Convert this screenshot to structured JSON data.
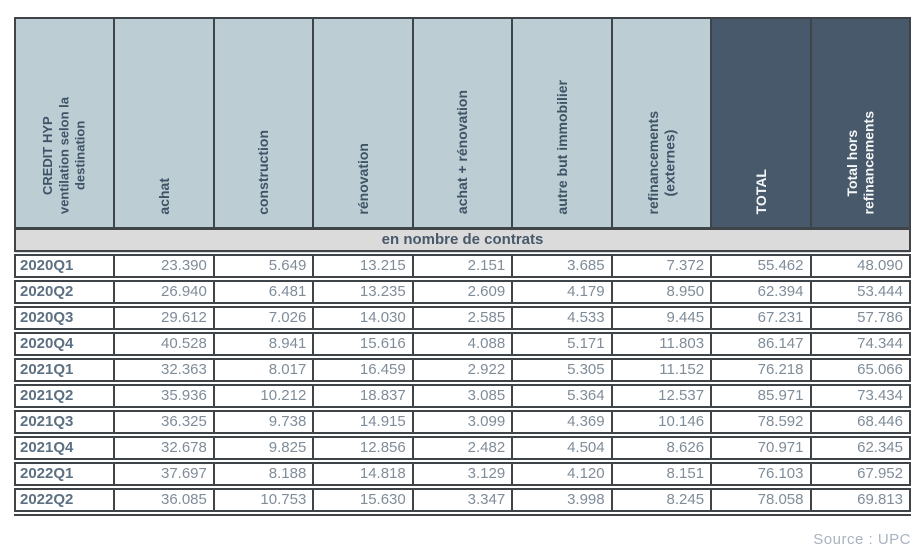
{
  "colors": {
    "header_light_bg": "#bccdd4",
    "header_dark_bg": "#47596a",
    "header_text_dark": "#3e5365",
    "header_text_light": "#f4f6f7",
    "band_bg": "#dbdbdb",
    "band_text": "#47596a",
    "border": "#3f4449",
    "period_text": "#5d7082",
    "value_text": "#7f8c99",
    "source_text": "#a9b3bf",
    "row_bg": "#ffffff"
  },
  "table": {
    "corner_header": "CREDIT HYP\nventilation selon la\ndestination",
    "columns": [
      {
        "label": "achat",
        "dark": false
      },
      {
        "label": "construction",
        "dark": false
      },
      {
        "label": "rénovation",
        "dark": false
      },
      {
        "label": "achat + rénovation",
        "dark": false
      },
      {
        "label": "autre but immobilier",
        "dark": false
      },
      {
        "label": "refinancements\n(externes)",
        "dark": false
      },
      {
        "label": "TOTAL",
        "dark": true
      },
      {
        "label": "Total hors\nrefinancements",
        "dark": true
      }
    ],
    "section_header": "en nombre de contrats",
    "rows": [
      {
        "period": "2020Q1",
        "values": [
          "23.390",
          "5.649",
          "13.215",
          "2.151",
          "3.685",
          "7.372",
          "55.462",
          "48.090"
        ]
      },
      {
        "period": "2020Q2",
        "values": [
          "26.940",
          "6.481",
          "13.235",
          "2.609",
          "4.179",
          "8.950",
          "62.394",
          "53.444"
        ]
      },
      {
        "period": "2020Q3",
        "values": [
          "29.612",
          "7.026",
          "14.030",
          "2.585",
          "4.533",
          "9.445",
          "67.231",
          "57.786"
        ]
      },
      {
        "period": "2020Q4",
        "values": [
          "40.528",
          "8.941",
          "15.616",
          "4.088",
          "5.171",
          "11.803",
          "86.147",
          "74.344"
        ]
      },
      {
        "period": "2021Q1",
        "values": [
          "32.363",
          "8.017",
          "16.459",
          "2.922",
          "5.305",
          "11.152",
          "76.218",
          "65.066"
        ]
      },
      {
        "period": "2021Q2",
        "values": [
          "35.936",
          "10.212",
          "18.837",
          "3.085",
          "5.364",
          "12.537",
          "85.971",
          "73.434"
        ]
      },
      {
        "period": "2021Q3",
        "values": [
          "36.325",
          "9.738",
          "14.915",
          "3.099",
          "4.369",
          "10.146",
          "78.592",
          "68.446"
        ]
      },
      {
        "period": "2021Q4",
        "values": [
          "32.678",
          "9.825",
          "12.856",
          "2.482",
          "4.504",
          "8.626",
          "70.971",
          "62.345"
        ]
      },
      {
        "period": "2022Q1",
        "values": [
          "37.697",
          "8.188",
          "14.818",
          "3.129",
          "4.120",
          "8.151",
          "76.103",
          "67.952"
        ]
      },
      {
        "period": "2022Q2",
        "values": [
          "36.085",
          "10.753",
          "15.630",
          "3.347",
          "3.998",
          "8.245",
          "78.058",
          "69.813"
        ]
      }
    ]
  },
  "source_label": "Source : UPC",
  "chart_data": {
    "type": "table",
    "title": "CREDIT HYP ventilation selon la destination",
    "section": "en nombre de contrats",
    "unit_note": "values are counts of contracts; '.' is the thousands separator",
    "columns": [
      "achat",
      "construction",
      "rénovation",
      "achat + rénovation",
      "autre but immobilier",
      "refinancements (externes)",
      "TOTAL",
      "Total hors refinancements"
    ],
    "rows": [
      {
        "period": "2020Q1",
        "achat": 23390,
        "construction": 5649,
        "renovation": 13215,
        "achat_renovation": 2151,
        "autre_but_immobilier": 3685,
        "refinancements_externes": 7372,
        "total": 55462,
        "total_hors_refinancements": 48090
      },
      {
        "period": "2020Q2",
        "achat": 26940,
        "construction": 6481,
        "renovation": 13235,
        "achat_renovation": 2609,
        "autre_but_immobilier": 4179,
        "refinancements_externes": 8950,
        "total": 62394,
        "total_hors_refinancements": 53444
      },
      {
        "period": "2020Q3",
        "achat": 29612,
        "construction": 7026,
        "renovation": 14030,
        "achat_renovation": 2585,
        "autre_but_immobilier": 4533,
        "refinancements_externes": 9445,
        "total": 67231,
        "total_hors_refinancements": 57786
      },
      {
        "period": "2020Q4",
        "achat": 40528,
        "construction": 8941,
        "renovation": 15616,
        "achat_renovation": 4088,
        "autre_but_immobilier": 5171,
        "refinancements_externes": 11803,
        "total": 86147,
        "total_hors_refinancements": 74344
      },
      {
        "period": "2021Q1",
        "achat": 32363,
        "construction": 8017,
        "renovation": 16459,
        "achat_renovation": 2922,
        "autre_but_immobilier": 5305,
        "refinancements_externes": 11152,
        "total": 76218,
        "total_hors_refinancements": 65066
      },
      {
        "period": "2021Q2",
        "achat": 35936,
        "construction": 10212,
        "renovation": 18837,
        "achat_renovation": 3085,
        "autre_but_immobilier": 5364,
        "refinancements_externes": 12537,
        "total": 85971,
        "total_hors_refinancements": 73434
      },
      {
        "period": "2021Q3",
        "achat": 36325,
        "construction": 9738,
        "renovation": 14915,
        "achat_renovation": 3099,
        "autre_but_immobilier": 4369,
        "refinancements_externes": 10146,
        "total": 78592,
        "total_hors_refinancements": 68446
      },
      {
        "period": "2021Q4",
        "achat": 32678,
        "construction": 9825,
        "renovation": 12856,
        "achat_renovation": 2482,
        "autre_but_immobilier": 4504,
        "refinancements_externes": 8626,
        "total": 70971,
        "total_hors_refinancements": 62345
      },
      {
        "period": "2022Q1",
        "achat": 37697,
        "construction": 8188,
        "renovation": 14818,
        "achat_renovation": 3129,
        "autre_but_immobilier": 4120,
        "refinancements_externes": 8151,
        "total": 76103,
        "total_hors_refinancements": 67952
      },
      {
        "period": "2022Q2",
        "achat": 36085,
        "construction": 10753,
        "renovation": 15630,
        "achat_renovation": 3347,
        "autre_but_immobilier": 3998,
        "refinancements_externes": 8245,
        "total": 78058,
        "total_hors_refinancements": 69813
      }
    ]
  }
}
